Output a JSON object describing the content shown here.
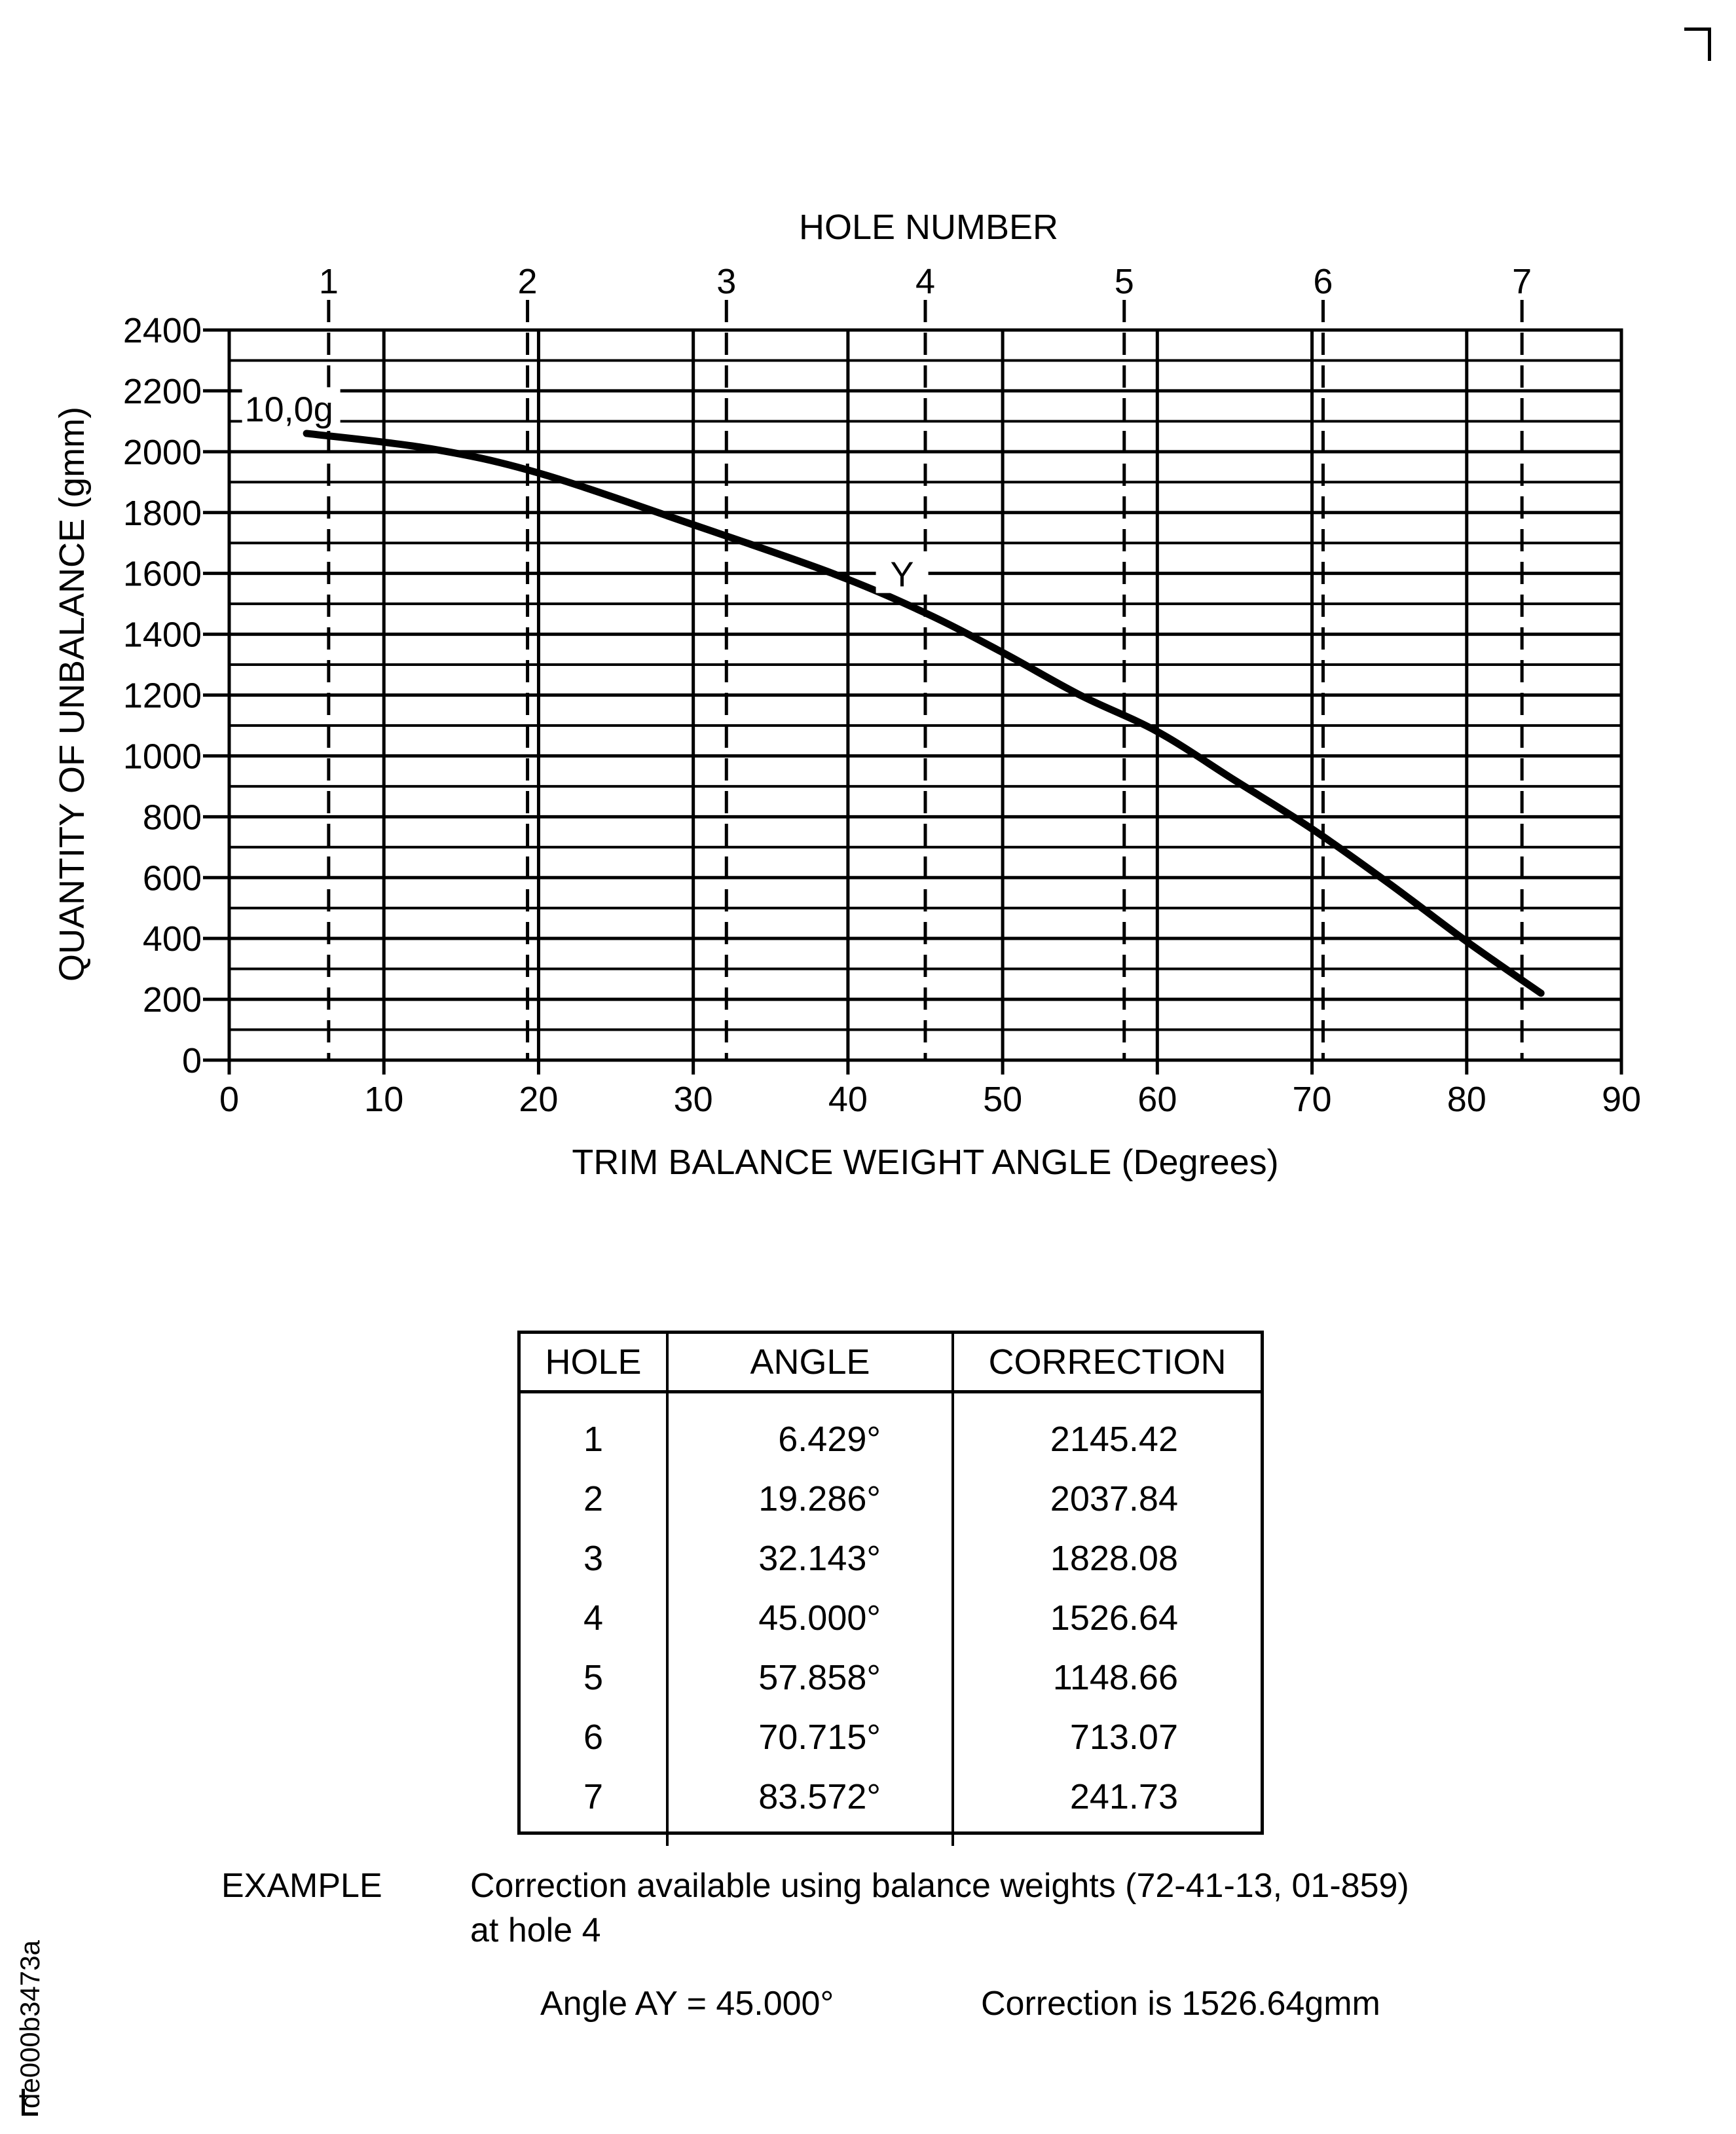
{
  "chart_data": {
    "type": "line",
    "title": "",
    "top_axis_label": "HOLE NUMBER",
    "xlabel": "TRIM BALANCE WEIGHT ANGLE (Degrees)",
    "ylabel": "QUANTITY OF UNBALANCE (gmm)",
    "xlim": [
      0,
      90
    ],
    "ylim": [
      0,
      2400
    ],
    "x_ticks": [
      0,
      10,
      20,
      30,
      40,
      50,
      60,
      70,
      80,
      90
    ],
    "y_ticks": [
      0,
      200,
      400,
      600,
      800,
      1000,
      1200,
      1400,
      1600,
      1800,
      2000,
      2200,
      2400
    ],
    "grid": {
      "x_major": 10,
      "y_minor": 100
    },
    "hole_lines": [
      {
        "hole": "1",
        "angle": 6.429
      },
      {
        "hole": "2",
        "angle": 19.286
      },
      {
        "hole": "3",
        "angle": 32.143
      },
      {
        "hole": "4",
        "angle": 45.0
      },
      {
        "hole": "5",
        "angle": 57.858
      },
      {
        "hole": "6",
        "angle": 70.715
      },
      {
        "hole": "7",
        "angle": 83.572
      }
    ],
    "series": [
      {
        "name": "10,0g",
        "x": [
          5,
          13,
          20,
          30,
          39,
          45,
          50,
          55,
          60,
          65,
          70,
          75,
          80,
          84.8
        ],
        "y": [
          2060,
          2010,
          1930,
          1760,
          1600,
          1470,
          1340,
          1200,
          1080,
          920,
          760,
          580,
          390,
          220
        ]
      }
    ],
    "annotations": [
      {
        "text": "10,0g",
        "x": 1,
        "y": 2100
      },
      {
        "text": "Y",
        "x": 43.5,
        "y": 1600
      }
    ]
  },
  "table": {
    "headers": [
      "HOLE",
      "ANGLE",
      "CORRECTION"
    ],
    "rows": [
      [
        "1",
        "6.429°",
        "2145.42"
      ],
      [
        "2",
        "19.286°",
        "2037.84"
      ],
      [
        "3",
        "32.143°",
        "1828.08"
      ],
      [
        "4",
        "45.000°",
        "1526.64"
      ],
      [
        "5",
        "57.858°",
        "1148.66"
      ],
      [
        "6",
        "70.715°",
        "713.07"
      ],
      [
        "7",
        "83.572°",
        "241.73"
      ]
    ]
  },
  "example": {
    "label": "EXAMPLE",
    "line1": "Correction available using balance weights (72-41-13, 01-859)",
    "line2": "at hole 4",
    "angle_text": "Angle AY = 45.000°",
    "correction_text": "Correction is 1526.64gmm"
  },
  "figure_code": "de000b3473a"
}
